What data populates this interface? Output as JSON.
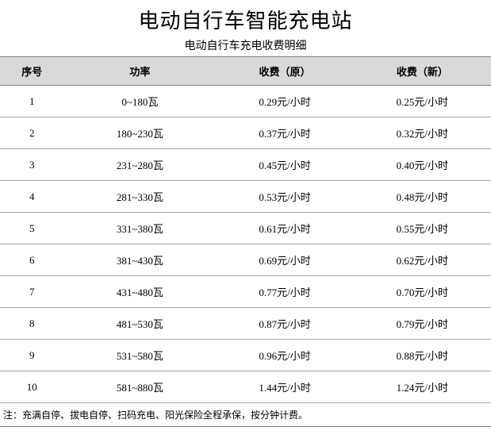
{
  "title": "电动自行车智能充电站",
  "subtitle": "电动自行车充电收费明细",
  "table": {
    "columns": [
      "序号",
      "功率",
      "收费（原）",
      "收费（新）"
    ],
    "rows": [
      [
        "1",
        "0~180瓦",
        "0.29元/小时",
        "0.25元/小时"
      ],
      [
        "2",
        "180~230瓦",
        "0.37元/小时",
        "0.32元/小时"
      ],
      [
        "3",
        "231~280瓦",
        "0.45元/小时",
        "0.40元/小时"
      ],
      [
        "4",
        "281~330瓦",
        "0.53元/小时",
        "0.48元/小时"
      ],
      [
        "5",
        "331~380瓦",
        "0.61元/小时",
        "0.55元/小时"
      ],
      [
        "6",
        "381~430瓦",
        "0.69元/小时",
        "0.62元/小时"
      ],
      [
        "7",
        "431~480瓦",
        "0.77元/小时",
        "0.70元/小时"
      ],
      [
        "8",
        "481~530瓦",
        "0.87元/小时",
        "0.79元/小时"
      ],
      [
        "9",
        "531~580瓦",
        "0.96元/小时",
        "0.88元/小时"
      ],
      [
        "10",
        "581~880瓦",
        "1.44元/小时",
        "1.24元/小时"
      ]
    ]
  },
  "footer_note": "注：充满自停、拔电自停、扫码充电、阳光保险全程承保，按分钟计费。",
  "colors": {
    "header_bg": "#d9d9d9",
    "border_dark": "#7f7f7f",
    "border_light": "#a5a5a5",
    "background": "#ffffff",
    "text": "#000000"
  },
  "typography": {
    "title_fontsize": 26,
    "subtitle_fontsize": 14,
    "header_fontsize": 13,
    "cell_fontsize": 13,
    "footer_fontsize": 12
  }
}
